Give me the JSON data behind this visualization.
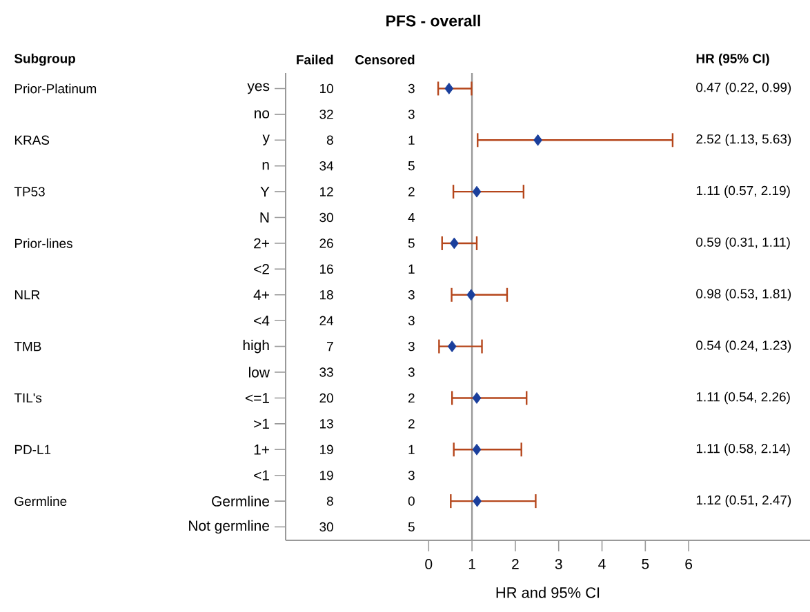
{
  "chart_data": [
    {
      "type": "other",
      "title": "Subgroup",
      "annotations": [
        "Prior-Platinum",
        "KRAS",
        "TP53",
        "Prior-lines",
        "NLR",
        "TMB",
        "TIL's",
        "PD-L1",
        "Germline"
      ]
    },
    {
      "type": "other",
      "title": "Failed",
      "annotations": [
        "10",
        "32",
        "8",
        "34",
        "12",
        "30",
        "26",
        "16",
        "18",
        "24",
        "7",
        "33",
        "20",
        "13",
        "19",
        "19",
        "8",
        "30"
      ]
    },
    {
      "type": "other",
      "title": "Censored",
      "annotations": [
        "3",
        "3",
        "1",
        "5",
        "2",
        "4",
        "5",
        "1",
        "3",
        "3",
        "3",
        "3",
        "2",
        "2",
        "1",
        "3",
        "0",
        "5"
      ]
    },
    {
      "type": "scatter",
      "orientation": "horizontal",
      "title": "PFS - overall",
      "xlabel": "HR and 95% CI",
      "categories": [
        "yes",
        "no",
        "y",
        "n",
        "Y",
        "N",
        "2+",
        "<2",
        "4+",
        "<4",
        "high",
        "low",
        "<=1",
        ">1",
        "1+",
        "<1",
        "Germline",
        "Not germline"
      ],
      "series": [
        {
          "color": "#1a3f9c",
          "values": [
            0.47,
            null,
            2.52,
            null,
            1.11,
            null,
            0.59,
            null,
            0.98,
            null,
            0.54,
            null,
            1.11,
            null,
            1.11,
            null,
            1.12,
            null
          ],
          "errors": [
            [
              0.22,
              0.99
            ],
            null,
            [
              1.13,
              5.63
            ],
            null,
            [
              0.57,
              2.19
            ],
            null,
            [
              0.31,
              1.11
            ],
            null,
            [
              0.53,
              1.81
            ],
            null,
            [
              0.24,
              1.23
            ],
            null,
            [
              0.54,
              2.26
            ],
            null,
            [
              0.58,
              2.14
            ],
            null,
            [
              0.51,
              2.47
            ],
            null
          ]
        }
      ],
      "marker": "diamond",
      "xlim": [
        -3.3,
        8.8
      ],
      "xticks": [
        0,
        1,
        2,
        3,
        4,
        5,
        6
      ],
      "ref_lines": [
        {
          "axis": "x",
          "value": 1,
          "color": "#9a9a9a"
        }
      ]
    },
    {
      "type": "other",
      "title": "HR (95% CI)",
      "annotations": [
        "0.47 (0.22, 0.99)",
        "2.52 (1.13, 5.63)",
        "1.11 (0.57, 2.19)",
        "0.59 (0.31, 1.11)",
        "0.98 (0.53, 1.81)",
        "0.54 (0.24, 1.23)",
        "1.11 (0.54, 2.26)",
        "1.11 (0.58, 2.14)",
        "1.12 (0.51, 2.47)"
      ]
    }
  ]
}
